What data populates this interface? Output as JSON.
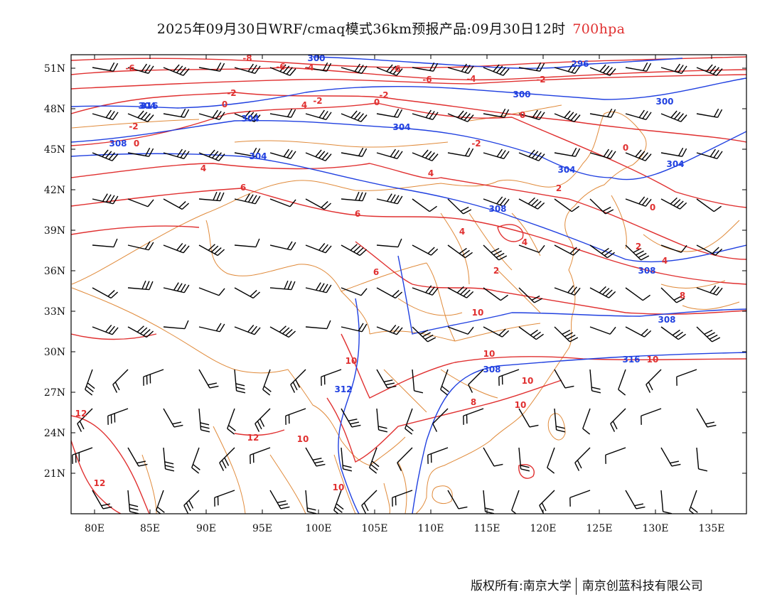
{
  "title": {
    "main": "2025年09月30日WRF/cmaq模式36km预报产品:09月30日12时",
    "level": "700hpa"
  },
  "colors": {
    "height_contour": "#2040e0",
    "temperature_contour": "#e03030",
    "coastline_border": "#e08a3a",
    "wind_barb": "#000000"
  },
  "axes": {
    "lat_labels": [
      "51N",
      "48N",
      "45N",
      "42N",
      "39N",
      "36N",
      "33N",
      "30N",
      "27N",
      "24N",
      "21N"
    ],
    "lon_labels": [
      "80E",
      "85E",
      "90E",
      "95E",
      "100E",
      "105E",
      "110E",
      "115E",
      "120E",
      "125E",
      "130E",
      "135E"
    ]
  },
  "height_contour_labels": [
    "300",
    "296",
    "300",
    "300",
    "304",
    "304",
    "304",
    "304",
    "308",
    "304",
    "304",
    "308",
    "308",
    "308",
    "308",
    "316",
    "312",
    "316"
  ],
  "temperature_contour_labels": [
    "-8",
    "-6",
    "-6",
    "-4",
    "-6",
    "-6",
    "-4",
    "-2",
    "-2",
    "-2",
    "0",
    "-2",
    "0",
    "4",
    "-2",
    "0",
    "0",
    "-2",
    "0",
    "4",
    "4",
    "6",
    "2",
    "0",
    "6",
    "4",
    "4",
    "2",
    "2",
    "4",
    "6",
    "10",
    "8",
    "10",
    "10",
    "10",
    "10",
    "12",
    "12",
    "10",
    "12",
    "10",
    "10",
    "8"
  ],
  "footer": {
    "left": "版权所有:南京大学",
    "right": "南京创蓝科技有限公司"
  }
}
